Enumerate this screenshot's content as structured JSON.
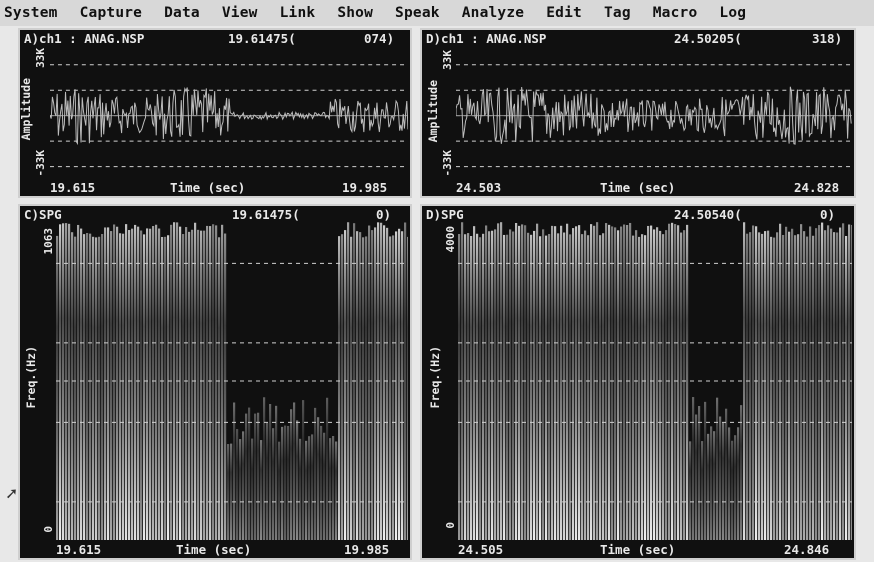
{
  "menu": [
    "System",
    "Capture",
    "Data",
    "View",
    "Link",
    "Show",
    "Speak",
    "Analyze",
    "Edit",
    "Tag",
    "Macro",
    "Log"
  ],
  "panels": {
    "a": {
      "title": "A)ch1 : ANAG.NSP",
      "time": "19.61475(",
      "count": "074)",
      "ylabel": "Amplitude",
      "ymax": "33K",
      "ymin": "-33K",
      "xstart": "19.615",
      "xlabel": "Time (sec)",
      "xend": "19.985"
    },
    "b": {
      "title": "D)ch1 : ANAG.NSP",
      "time": "24.50205(",
      "count": "318)",
      "ylabel": "Amplitude",
      "ymax": "33K",
      "ymin": "-33K",
      "xstart": "24.503",
      "xlabel": "Time (sec)",
      "xend": "24.828"
    },
    "c": {
      "title": "C)SPG",
      "time": "19.61475(",
      "count": "0)",
      "ylabel": "Freq.(Hz)",
      "ymax": "1063",
      "ymin": "0",
      "xstart": "19.615",
      "xlabel": "Time (sec)",
      "xend": "19.985"
    },
    "d": {
      "title": "D)SPG",
      "time": "24.50540(",
      "count": "0)",
      "ylabel": "Freq.(Hz)",
      "ymax": "4000",
      "ymin": "0",
      "xstart": "24.505",
      "xlabel": "Time (sec)",
      "xend": "24.846"
    }
  },
  "colors": {
    "panel_bg": "#101010",
    "grid": "#d0d0d0",
    "trace": "#bdbdbd",
    "menubar": "#d8d8d8"
  },
  "icons": [
    "pointer-cursor-icon"
  ]
}
